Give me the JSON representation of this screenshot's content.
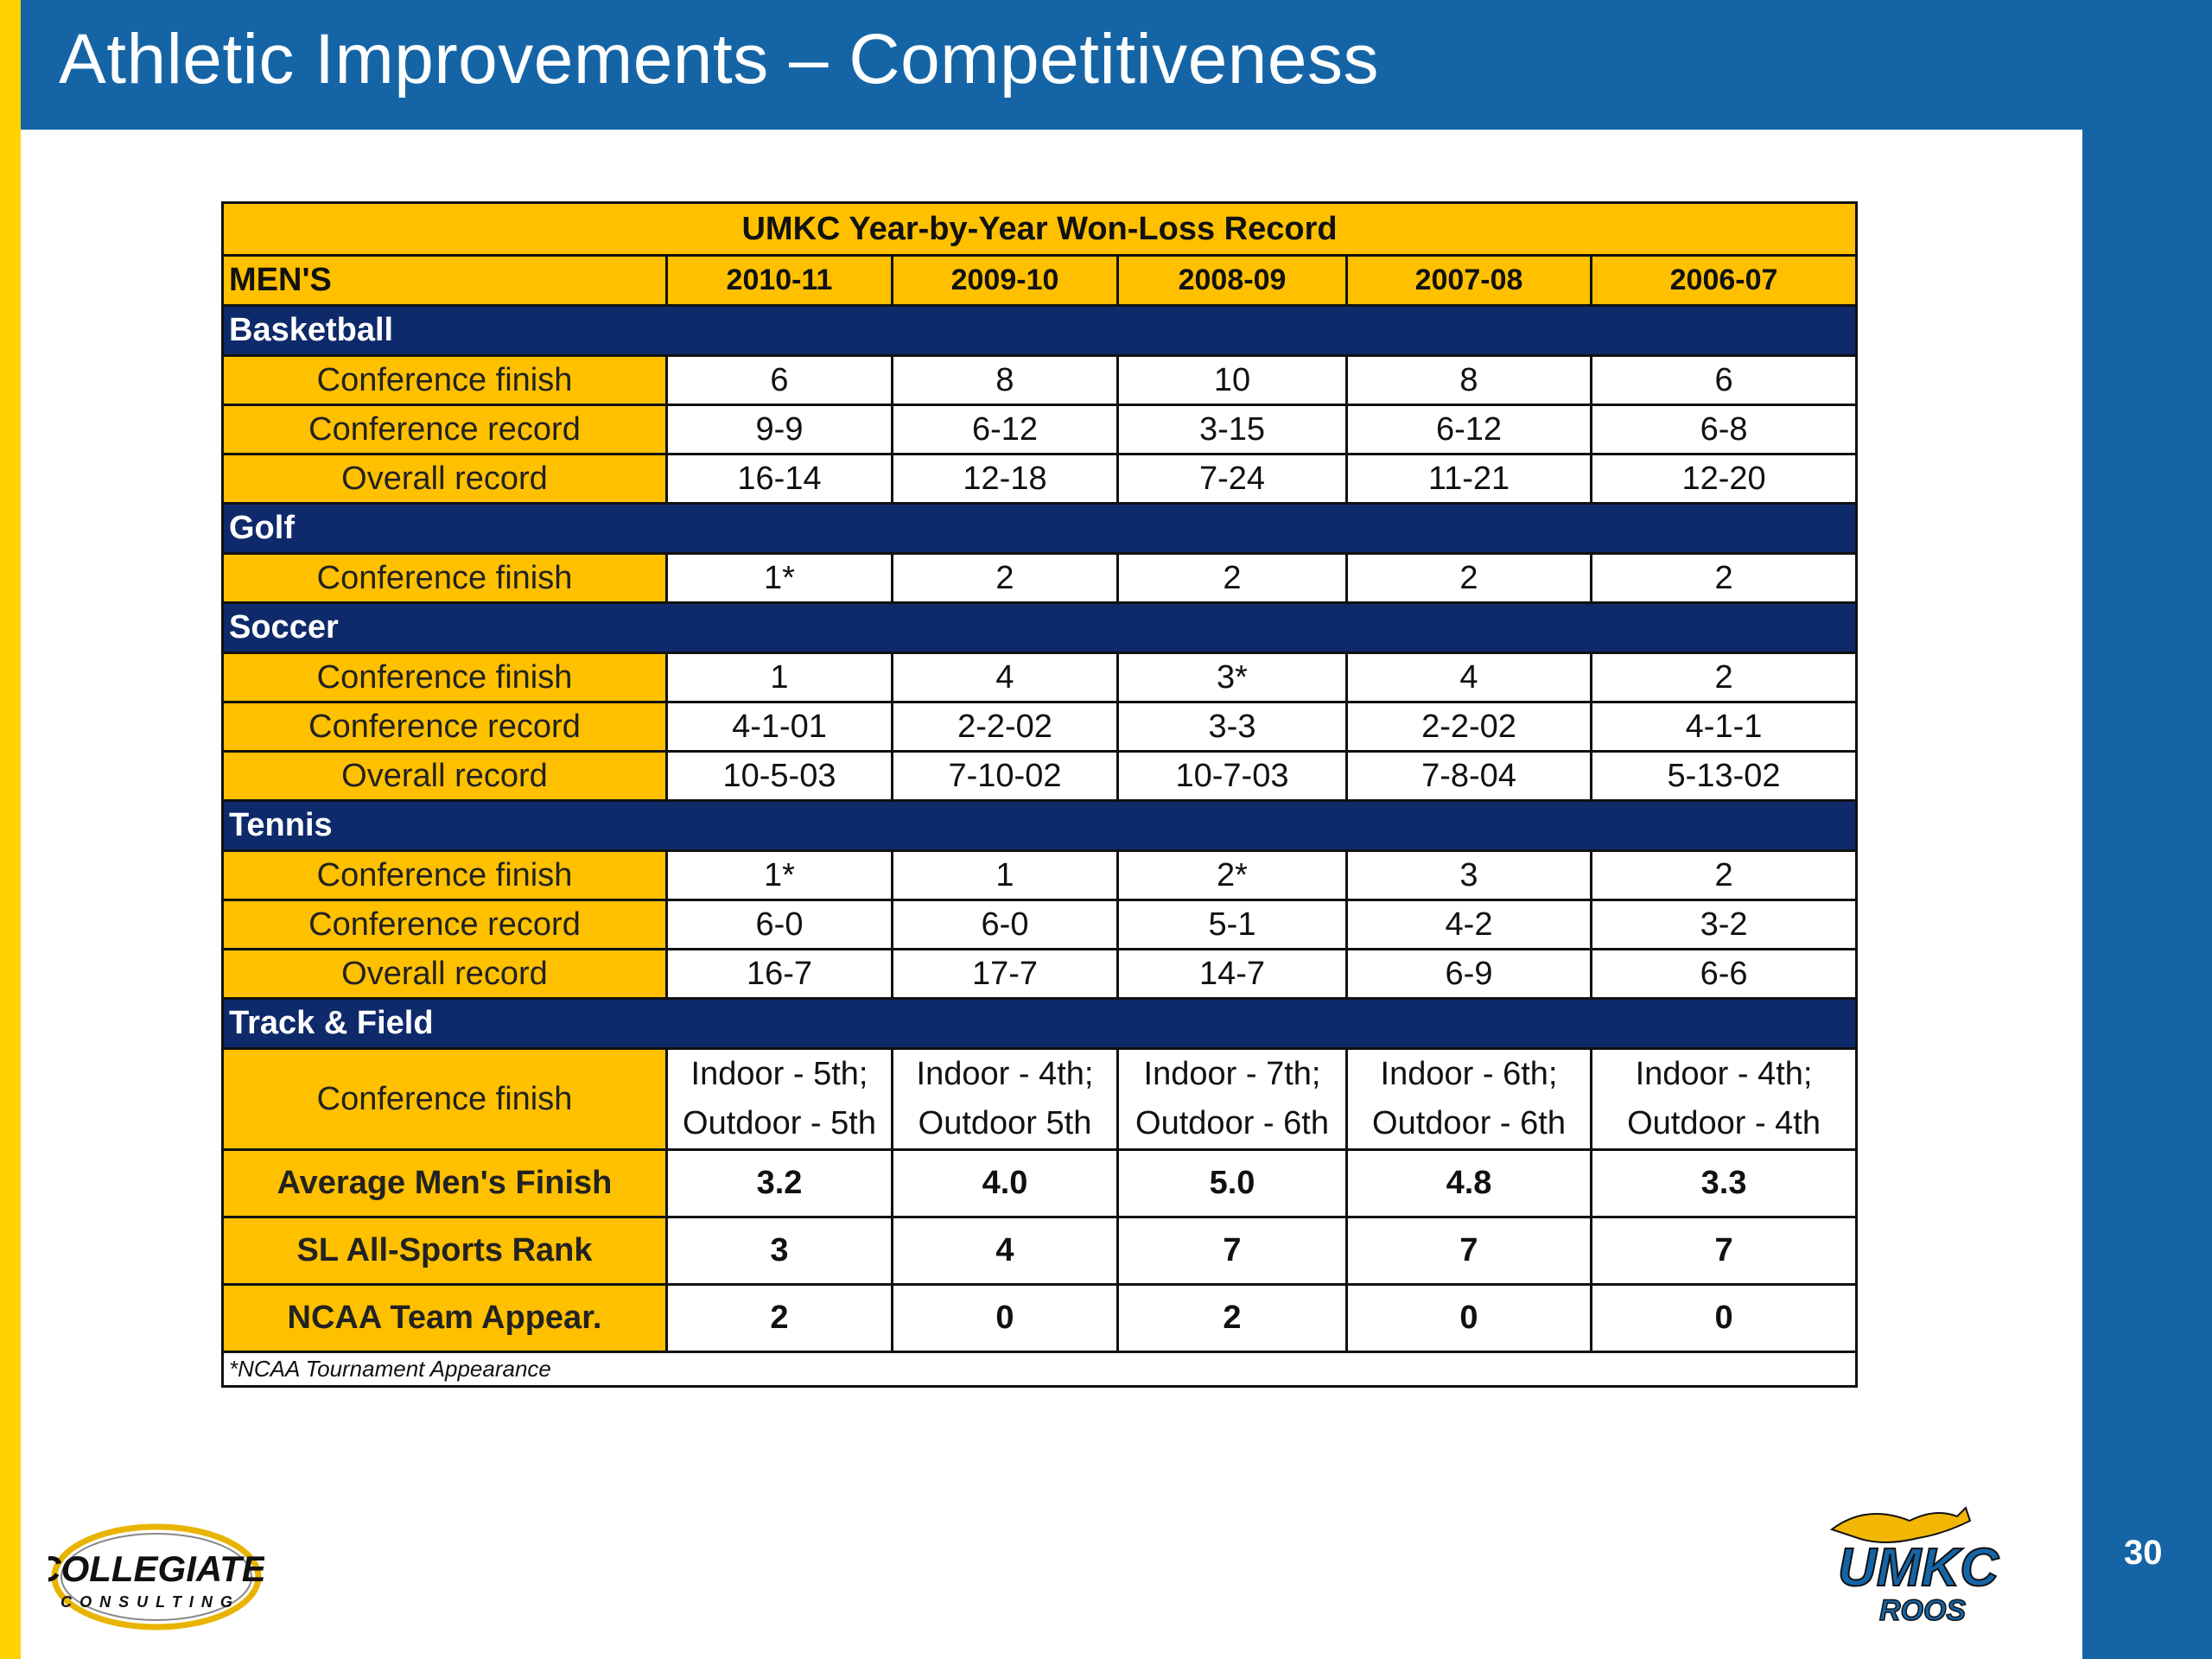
{
  "title": "Athletic Improvements – Competitiveness",
  "page_number": "30",
  "table": {
    "title": "UMKC Year-by-Year Won-Loss Record",
    "corner": "MEN'S",
    "columns": [
      "2010-11",
      "2009-10",
      "2008-09",
      "2007-08",
      "2006-07"
    ],
    "sections": [
      {
        "name": "Basketball",
        "rows": [
          {
            "label": "Conference finish",
            "values": [
              "6",
              "8",
              "10",
              "8",
              "6"
            ]
          },
          {
            "label": "Conference record",
            "values": [
              "9-9",
              "6-12",
              "3-15",
              "6-12",
              "6-8"
            ]
          },
          {
            "label": "Overall record",
            "values": [
              "16-14",
              "12-18",
              "7-24",
              "11-21",
              "12-20"
            ]
          }
        ]
      },
      {
        "name": "Golf",
        "rows": [
          {
            "label": "Conference finish",
            "values": [
              "1*",
              "2",
              "2",
              "2",
              "2"
            ]
          }
        ]
      },
      {
        "name": "Soccer",
        "rows": [
          {
            "label": "Conference finish",
            "values": [
              "1",
              "4",
              "3*",
              "4",
              "2"
            ]
          },
          {
            "label": "Conference record",
            "values": [
              "4-1-01",
              "2-2-02",
              "3-3",
              "2-2-02",
              "4-1-1"
            ]
          },
          {
            "label": "Overall record",
            "values": [
              "10-5-03",
              "7-10-02",
              "10-7-03",
              "7-8-04",
              "5-13-02"
            ]
          }
        ]
      },
      {
        "name": "Tennis",
        "rows": [
          {
            "label": "Conference finish",
            "values": [
              "1*",
              "1",
              "2*",
              "3",
              "2"
            ]
          },
          {
            "label": "Conference record",
            "values": [
              "6-0",
              "6-0",
              "5-1",
              "4-2",
              "3-2"
            ]
          },
          {
            "label": "Overall record",
            "values": [
              "16-7",
              "17-7",
              "14-7",
              "6-9",
              "6-6"
            ]
          }
        ]
      },
      {
        "name": "Track & Field",
        "rows": [
          {
            "label": "Conference finish",
            "values": [
              [
                "Indoor - 5th;",
                "Outdoor - 5th"
              ],
              [
                "Indoor - 4th;",
                "Outdoor 5th"
              ],
              [
                "Indoor - 7th;",
                "Outdoor - 6th"
              ],
              [
                "Indoor - 6th;",
                "Outdoor - 6th"
              ],
              [
                "Indoor - 4th;",
                "Outdoor - 4th"
              ]
            ]
          }
        ]
      }
    ],
    "summary": [
      {
        "label": "Average Men's Finish",
        "values": [
          "3.2",
          "4.0",
          "5.0",
          "4.8",
          "3.3"
        ]
      },
      {
        "label": "SL All-Sports Rank",
        "values": [
          "3",
          "4",
          "7",
          "7",
          "7"
        ]
      },
      {
        "label": "NCAA Team Appear.",
        "values": [
          "2",
          "0",
          "2",
          "0",
          "0"
        ]
      }
    ],
    "footnote": "*NCAA Tournament Appearance"
  },
  "logos": {
    "left": {
      "line1": "COLLEGIATE",
      "line2": "CONSULTING"
    },
    "right": {
      "line1": "UMKC",
      "line2": "ROOS"
    }
  },
  "colors": {
    "brand_blue": "#1565A6",
    "gold": "#FFC000",
    "navy": "#0E2A6B",
    "accent_yellow": "#FFD200"
  }
}
